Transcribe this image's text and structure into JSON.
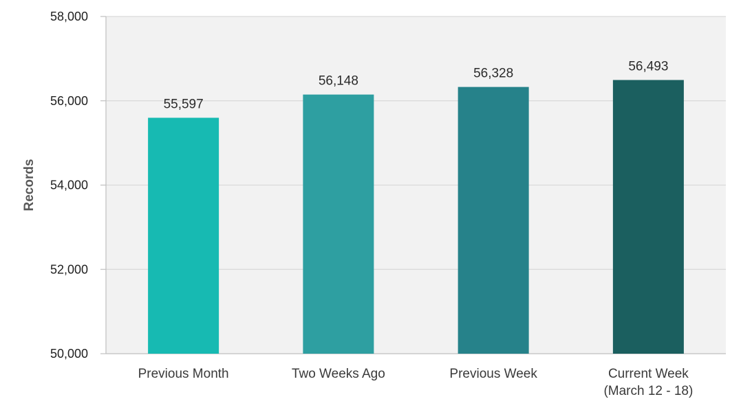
{
  "chart_data": {
    "type": "bar",
    "categories": [
      [
        "Previous Month"
      ],
      [
        "Two Weeks Ago"
      ],
      [
        "Previous Week"
      ],
      [
        "Current Week",
        "(March 12 - 18)"
      ]
    ],
    "values": [
      55597,
      56148,
      56328,
      56493
    ],
    "value_labels": [
      "55,597",
      "56,148",
      "56,328",
      "56,493"
    ],
    "bar_colors": [
      "#17bab2",
      "#2e9fa1",
      "#26828a",
      "#1b5f5f"
    ],
    "title": "",
    "xlabel": "",
    "ylabel": "Records",
    "ylim": [
      50000,
      58000
    ],
    "yticks": [
      50000,
      52000,
      54000,
      56000,
      58000
    ],
    "ytick_labels": [
      "50,000",
      "52,000",
      "54,000",
      "56,000",
      "58,000"
    ],
    "grid": true,
    "plot_background": "#f2f2f2",
    "gridline_color": "#d9d9d9"
  }
}
